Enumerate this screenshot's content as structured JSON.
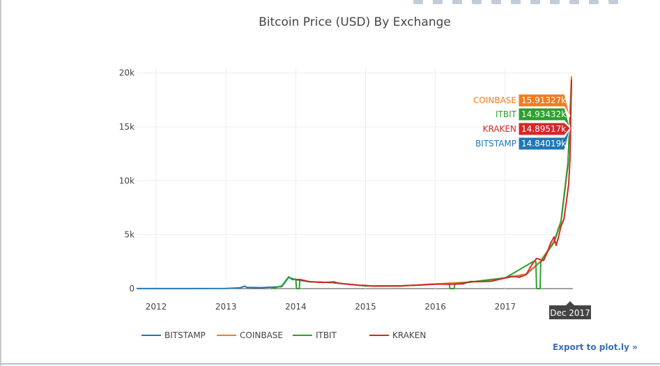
{
  "export_link": "Export to plot.ly »",
  "hover_x_label": "Dec 2017",
  "hover_labels": [
    {
      "name": "COINBASE",
      "value": "15.91327k",
      "color": "#f27c21"
    },
    {
      "name": "ITBIT",
      "value": "14.93432k",
      "color": "#2ca02c"
    },
    {
      "name": "KRAKEN",
      "value": "14.89517k",
      "color": "#d62728"
    },
    {
      "name": "BITSTAMP",
      "value": "14.84019k",
      "color": "#1f77b4"
    }
  ],
  "chart_data": {
    "type": "line",
    "title": "Bitcoin Price (USD) By Exchange",
    "xlabel": "",
    "ylabel": "",
    "x_ticks": [
      "2012",
      "2013",
      "2014",
      "2015",
      "2016",
      "2017"
    ],
    "y_ticks": [
      "0",
      "5k",
      "10k",
      "15k",
      "20k"
    ],
    "xlim": [
      2011.72,
      2017.97
    ],
    "ylim": [
      0,
      20500
    ],
    "grid": true,
    "legend_position": "bottom",
    "series": [
      {
        "name": "BITSTAMP",
        "color": "#1f77b4",
        "x": [
          2011.72,
          2012.0,
          2012.5,
          2013.0,
          2013.2,
          2013.27,
          2013.3,
          2013.5,
          2013.8,
          2013.9,
          2014.0,
          2014.2,
          2014.5,
          2014.8,
          2015.0,
          2015.5,
          2016.0,
          2016.5,
          2017.0,
          2017.3,
          2017.5,
          2017.7,
          2017.8,
          2017.9,
          2017.95
        ],
        "y": [
          5,
          6,
          8,
          13,
          70,
          230,
          110,
          90,
          190,
          1050,
          820,
          630,
          570,
          380,
          250,
          240,
          420,
          600,
          980,
          1300,
          2450,
          4300,
          6200,
          11500,
          19300
        ]
      },
      {
        "name": "COINBASE",
        "color": "#f27c21",
        "x": [
          2015.1,
          2015.5,
          2016.0,
          2016.5,
          2017.0,
          2017.3,
          2017.5,
          2017.7,
          2017.8,
          2017.9,
          2017.95
        ],
        "y": [
          240,
          250,
          430,
          620,
          1000,
          1350,
          2500,
          4400,
          6300,
          11800,
          19700
        ]
      },
      {
        "name": "ITBIT",
        "color": "#2ca02c",
        "x": [
          2013.65,
          2013.8,
          2013.9,
          2013.95,
          2014.0,
          2014.01,
          2014.05,
          2014.06,
          2014.1,
          2014.2,
          2014.5,
          2014.8,
          2015.0,
          2015.5,
          2016.0,
          2016.2,
          2016.21,
          2016.27,
          2016.28,
          2016.5,
          2017.0,
          2017.4,
          2017.44,
          2017.45,
          2017.5,
          2017.51,
          2017.53,
          2017.7,
          2017.8,
          2017.9,
          2017.95
        ],
        "y": [
          0,
          250,
          1100,
          820,
          900,
          0,
          0,
          850,
          780,
          640,
          570,
          380,
          250,
          240,
          420,
          430,
          0,
          0,
          440,
          600,
          980,
          2500,
          2500,
          0,
          0,
          2400,
          2700,
          4300,
          6200,
          11600,
          19000
        ]
      },
      {
        "name": "KRAKEN",
        "color": "#d62728",
        "x": [
          2014.0,
          2014.05,
          2014.2,
          2014.4,
          2014.55,
          2014.6,
          2014.7,
          2014.8,
          2014.9,
          2015.0,
          2015.1,
          2015.3,
          2015.5,
          2015.8,
          2016.0,
          2016.2,
          2016.4,
          2016.5,
          2016.6,
          2016.8,
          2017.0,
          2017.1,
          2017.2,
          2017.3,
          2017.4,
          2017.45,
          2017.55,
          2017.6,
          2017.65,
          2017.7,
          2017.73,
          2017.76,
          2017.8,
          2017.84,
          2017.88,
          2017.91,
          2017.93,
          2017.95
        ],
        "y": [
          820,
          850,
          640,
          560,
          630,
          520,
          440,
          380,
          320,
          300,
          230,
          250,
          260,
          330,
          420,
          410,
          440,
          660,
          640,
          680,
          980,
          1150,
          1050,
          1300,
          2400,
          2800,
          2600,
          3300,
          4200,
          4800,
          4000,
          4700,
          5800,
          6400,
          8200,
          9700,
          12200,
          19400
        ]
      }
    ]
  }
}
